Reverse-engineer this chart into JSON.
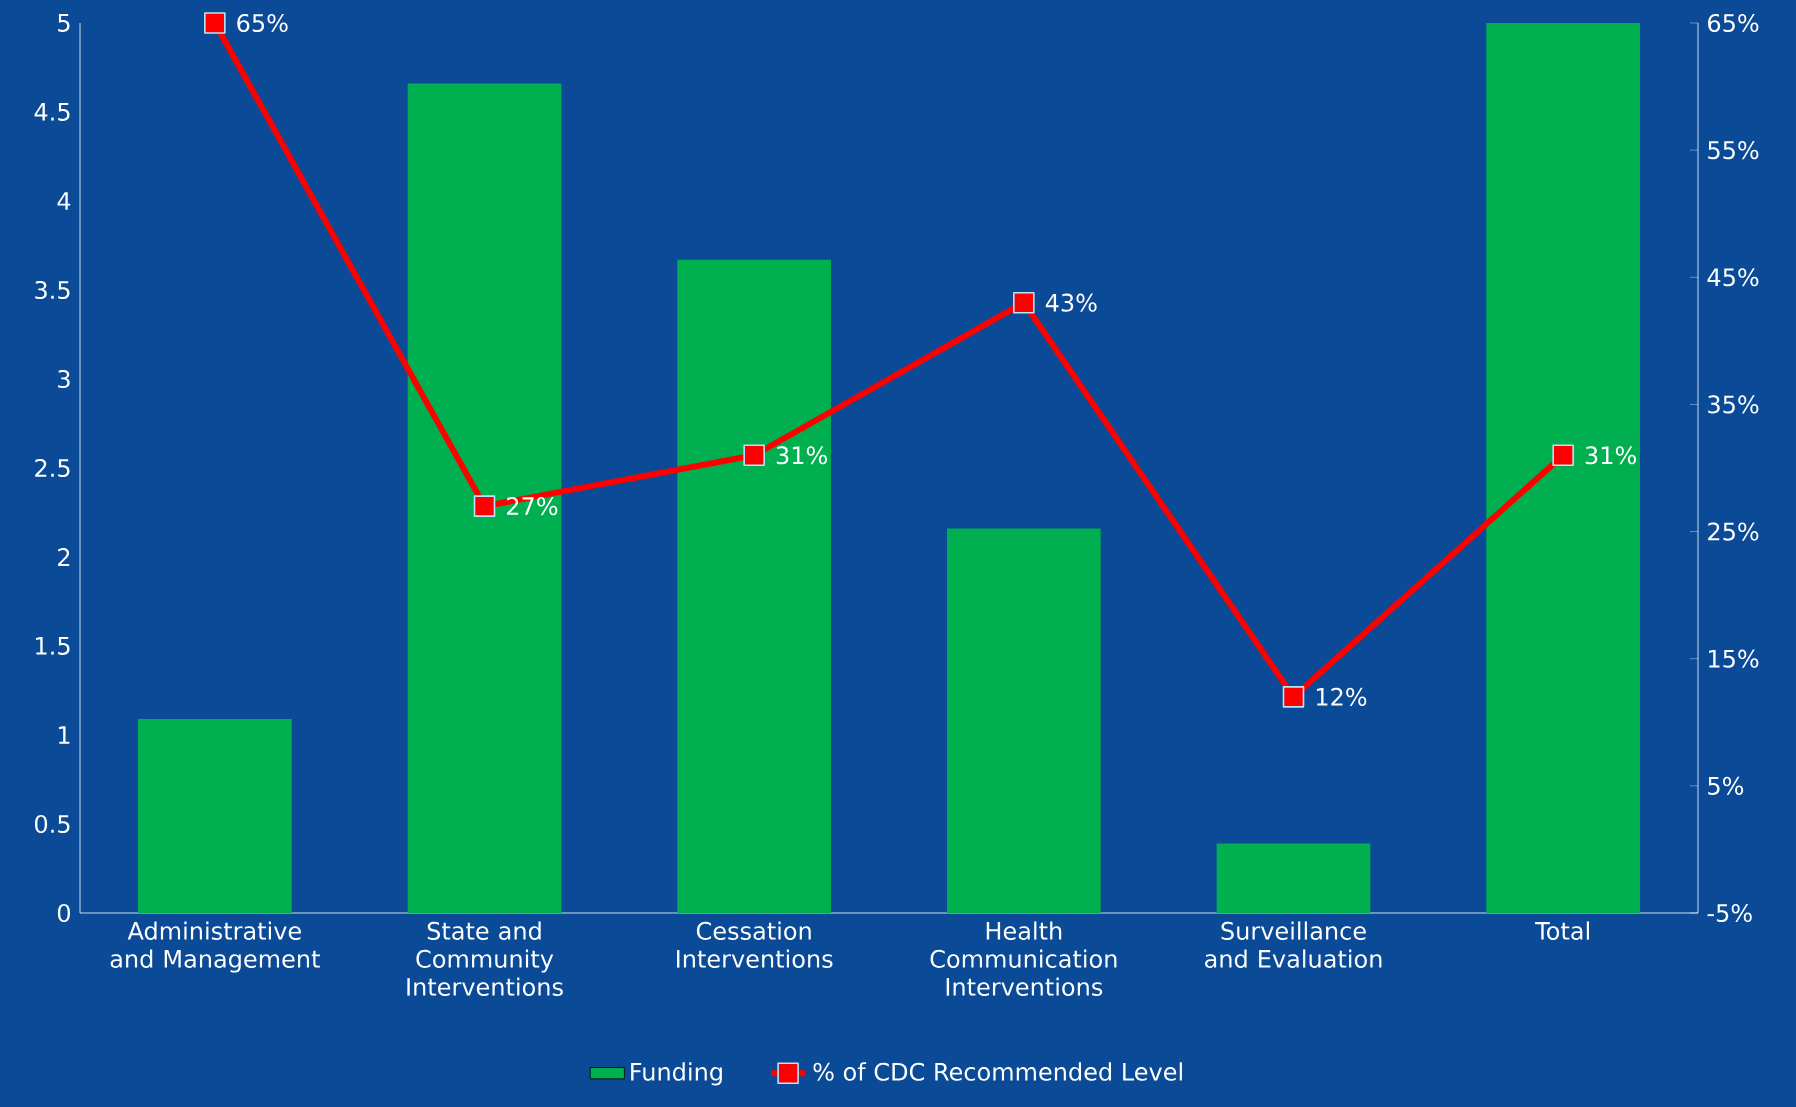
{
  "chart_data": {
    "type": "bar",
    "categories": [
      "Administrative and Management",
      "State and Community Interventions",
      "Cessation Interventions",
      "Health Communication Interventions",
      "Surveillance and Evaluation",
      "Total"
    ],
    "series": [
      {
        "name": "Funding",
        "color": "#00b050",
        "values": [
          1.09,
          4.66,
          3.67,
          2.16,
          0.39,
          5.0
        ]
      },
      {
        "name": "% of CDC Recommended Level",
        "type": "line",
        "axis": "y2",
        "color": "#ff0000",
        "values": [
          65,
          27,
          31,
          43,
          12,
          31
        ],
        "value_labels": [
          "65%",
          "27%",
          "31%",
          "43%",
          "12%",
          "31%"
        ]
      }
    ],
    "ylim": [
      0,
      5
    ],
    "yticks": [
      0,
      0.5,
      1,
      1.5,
      2,
      2.5,
      3,
      3.5,
      4,
      4.5,
      5
    ],
    "y2lim": [
      -5,
      65
    ],
    "y2ticks": [
      {
        "value": -5,
        "label": "-5%"
      },
      {
        "value": 5,
        "label": "5%"
      },
      {
        "value": 15,
        "label": "15%"
      },
      {
        "value": 25,
        "label": "25%"
      },
      {
        "value": 35,
        "label": "35%"
      },
      {
        "value": 45,
        "label": "45%"
      },
      {
        "value": 55,
        "label": "55%"
      },
      {
        "value": 65,
        "label": "65%"
      }
    ],
    "marker": "square",
    "line_style": "solid",
    "legend": "bottom"
  }
}
